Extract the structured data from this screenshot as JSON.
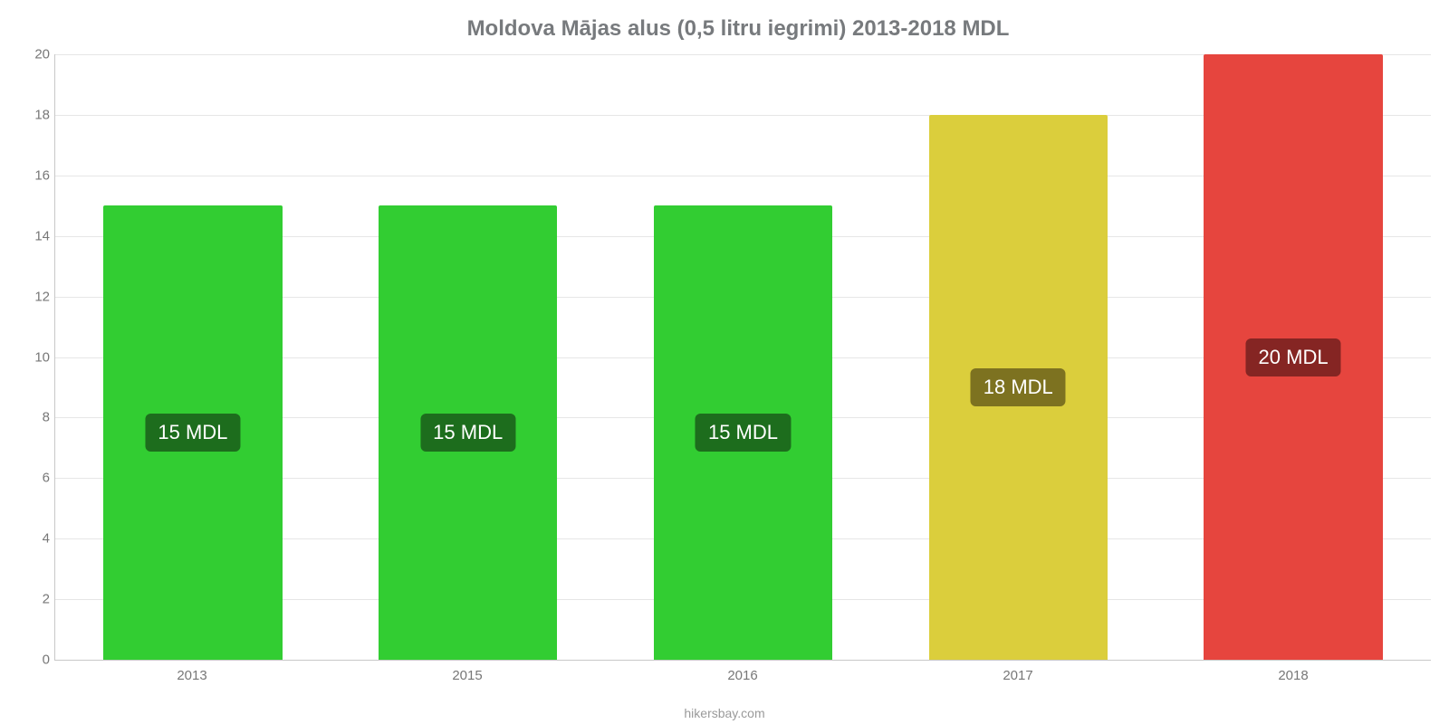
{
  "chart": {
    "type": "bar",
    "title": "Moldova Mājas alus (0,5 litru iegrimi) 2013-2018 MDL",
    "title_color": "#777a7d",
    "title_fontsize": 24,
    "background_color": "#ffffff",
    "grid_color": "#e6e6e6",
    "axis_color": "#c8c8c8",
    "y": {
      "min": 0,
      "max": 20,
      "ticks": [
        0,
        2,
        4,
        6,
        8,
        10,
        12,
        14,
        16,
        18,
        20
      ],
      "label_color": "#777777",
      "label_fontsize": 15
    },
    "x": {
      "categories": [
        "2013",
        "2015",
        "2016",
        "2017",
        "2018"
      ],
      "label_color": "#777777",
      "label_fontsize": 15
    },
    "bars": [
      {
        "value": 15,
        "color": "#32cd32",
        "label": "15 MDL",
        "label_bg": "#1d6d1d"
      },
      {
        "value": 15,
        "color": "#32cd32",
        "label": "15 MDL",
        "label_bg": "#1d6d1d"
      },
      {
        "value": 15,
        "color": "#32cd32",
        "label": "15 MDL",
        "label_bg": "#1d6d1d"
      },
      {
        "value": 18,
        "color": "#dbce3c",
        "label": "18 MDL",
        "label_bg": "#7d7220"
      },
      {
        "value": 20,
        "color": "#e6453e",
        "label": "20 MDL",
        "label_bg": "#852523"
      }
    ],
    "bar_width_pct": 65,
    "bar_label_fontsize": 22,
    "bar_label_color": "#ffffff",
    "watermark": "hikersbay.com",
    "watermark_color": "#9a9a9a",
    "watermark_fontsize": 14
  }
}
